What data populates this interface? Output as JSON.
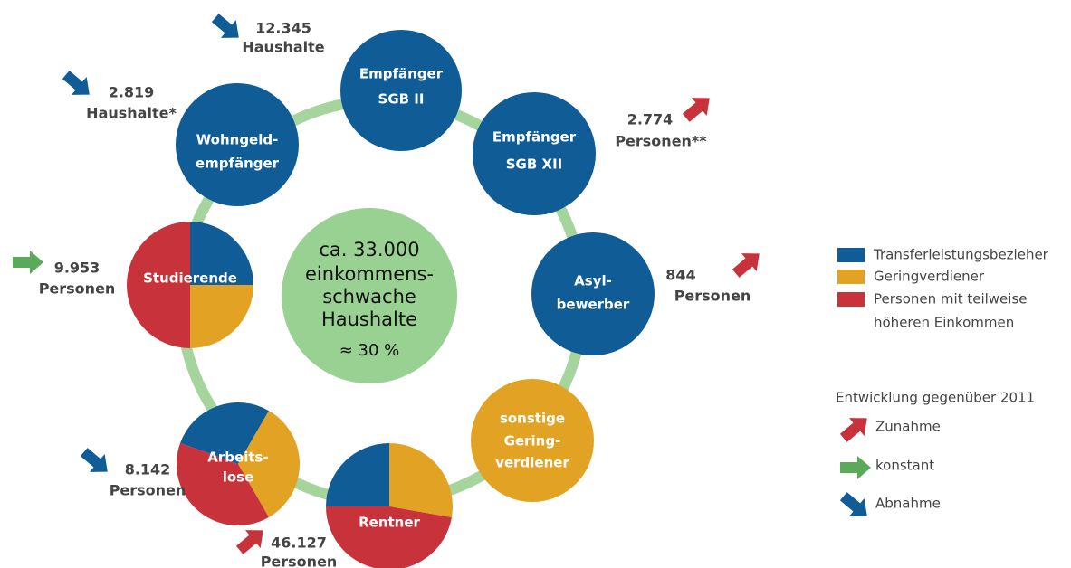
{
  "center": {
    "lines": [
      "ca. 33.000",
      "einkommens-",
      "schwache",
      "Haushalte",
      "≈ 30 %"
    ]
  },
  "nodes": [
    {
      "label": [
        "Empfänger",
        "SGB II"
      ],
      "value": "12.345",
      "unit": "Haushalte",
      "trend": 2
    },
    {
      "label": [
        "Empfänger",
        "SGB XII"
      ],
      "value": "2.774",
      "unit": "Personen**",
      "trend": 0
    },
    {
      "label": [
        "Asyl-",
        "bewerber"
      ],
      "value": "844",
      "unit": "Personen",
      "trend": 0
    },
    {
      "label": [
        "sonstige",
        "Gering-",
        "verdiener"
      ]
    },
    {
      "label": [
        "Rentner"
      ],
      "value": "46.127",
      "unit": "Personen",
      "trend": 0
    },
    {
      "label": [
        "Arbeits-",
        "lose"
      ],
      "value": "8.142",
      "unit": "Personen",
      "trend": 2
    },
    {
      "label": [
        "Studierende"
      ],
      "value": "9.953",
      "unit": "Personen",
      "trend": 1
    },
    {
      "label": [
        "Wohngeld-",
        "empfänger"
      ],
      "value": "2.819",
      "unit": "Haushalte*",
      "trend": 2
    }
  ],
  "legend": {
    "groups": [
      {
        "label": [
          "Transferleistungsbezieher"
        ],
        "color": "#0f5c96"
      },
      {
        "label": [
          "Geringverdiener"
        ],
        "color": "#e2a325"
      },
      {
        "label": [
          "Personen mit teilweise",
          "höheren Einkommen"
        ],
        "color": "#c8323a"
      }
    ],
    "trend_title": "Entwicklung gegenüber 2011",
    "trends": [
      {
        "label": "Zunahme",
        "color": "#c8323a"
      },
      {
        "label": "konstant",
        "color": "#5aaa5a"
      },
      {
        "label": "Abnahme",
        "color": "#0f5c96"
      }
    ]
  }
}
